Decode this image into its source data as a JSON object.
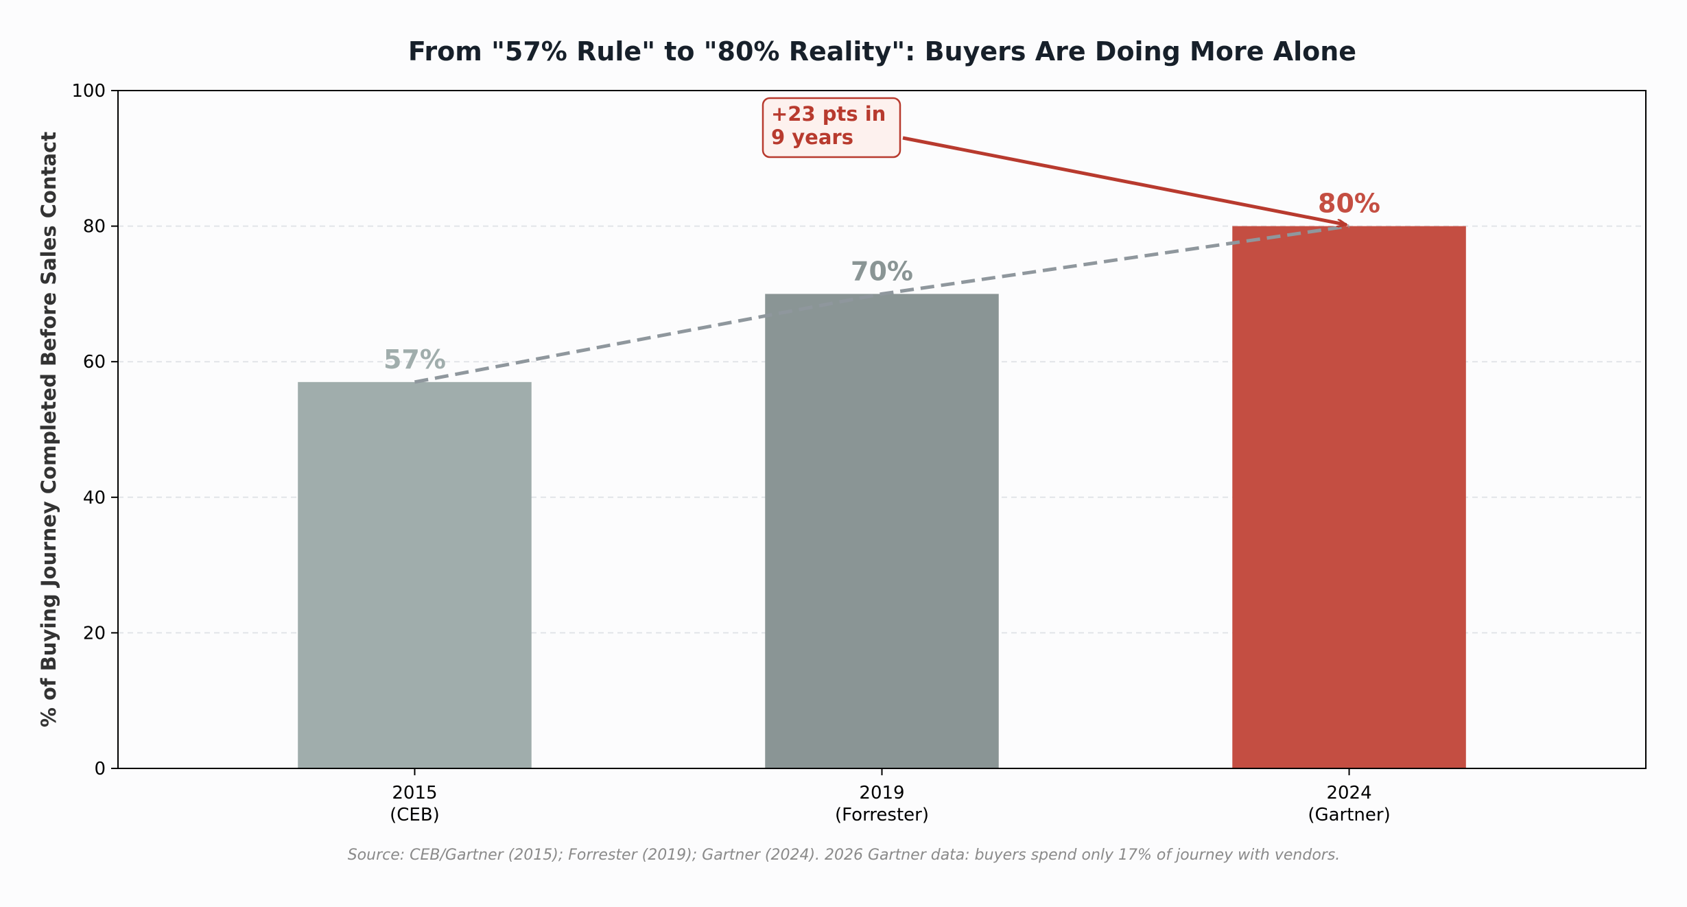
{
  "chart_data": {
    "type": "bar",
    "title": "From \"57% Rule\" to \"80% Reality\": Buyers Are Doing More Alone",
    "xlabel": "",
    "ylabel": "% of Buying Journey Completed Before Sales Contact",
    "ylim": [
      0,
      100
    ],
    "yticks": [
      "0",
      "20",
      "40",
      "60",
      "80",
      "100"
    ],
    "grid": "horizontal, dashed",
    "categories": [
      "2015\n(CEB)",
      "2019\n(Forrester)",
      "2024\n(Gartner)"
    ],
    "values": [
      57,
      70,
      80
    ],
    "value_labels": [
      "57%",
      "70%",
      "80%"
    ],
    "trend_line": "dashed line connecting bar tops",
    "annotation": {
      "text": "+23 pts in\n9 years",
      "points_to": "2024"
    },
    "source_note": "Source: CEB/Gartner (2015); Forrester (2019); Gartner (2024). 2026 Gartner data: buyers spend only 17% of journey with vendors.",
    "colors": {
      "bars": [
        "#a0adac",
        "#8a9595",
        "#c44e42"
      ],
      "label_colors": [
        "#a0adac",
        "#8a9595",
        "#c44e42"
      ],
      "trend_line": "#8f979d",
      "annotation": "#b83a2e",
      "annotation_fill": "#fdf1ee",
      "title": "#17202a",
      "grid": "#e1e4e8",
      "source": "#8a8a8a"
    }
  }
}
